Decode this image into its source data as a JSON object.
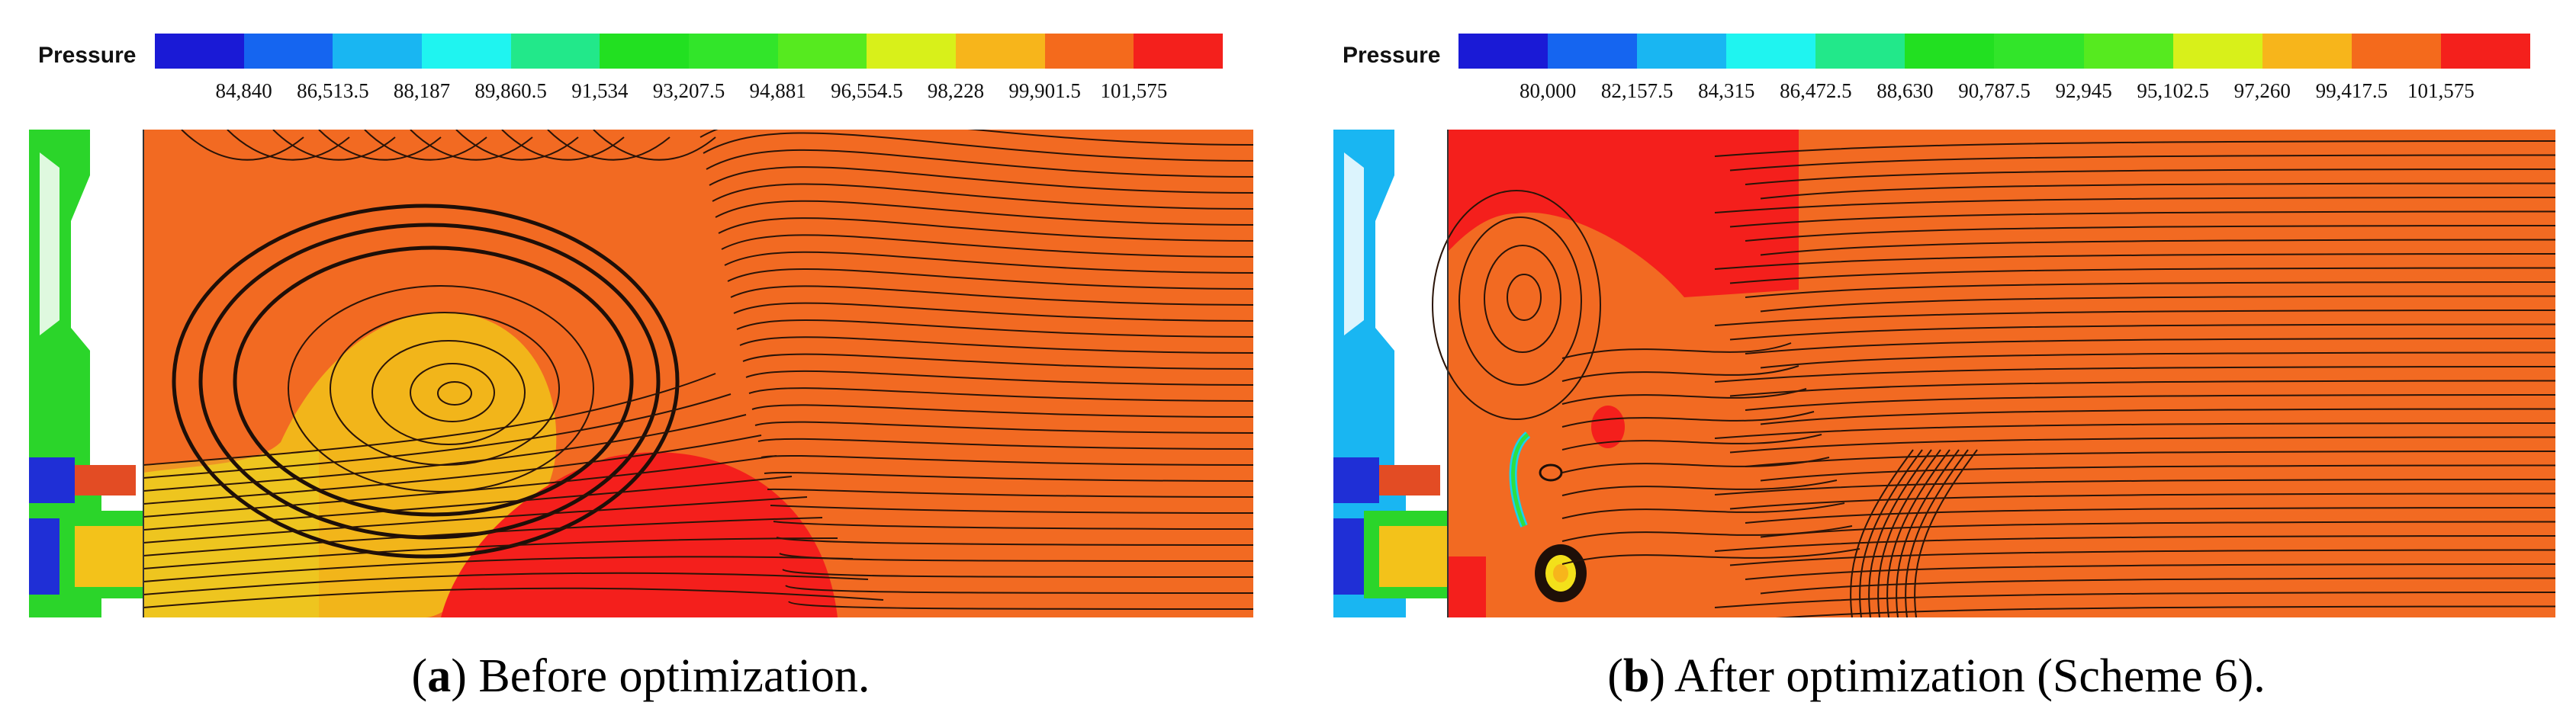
{
  "legend_label": "Pressure",
  "panels": [
    {
      "id": "a",
      "letter": "a",
      "caption": ") Before optimization.",
      "ticks": [
        "84,840",
        "86,513.5",
        "88,187",
        "89,860.5",
        "91,534",
        "93,207.5",
        "94,881",
        "96,554.5",
        "98,228",
        "99,901.5",
        "101,575"
      ]
    },
    {
      "id": "b",
      "letter": "b",
      "caption": ") After optimization (Scheme 6).",
      "ticks": [
        "80,000",
        "82,157.5",
        "84,315",
        "86,472.5",
        "88,630",
        "90,787.5",
        "92,945",
        "95,102.5",
        "97,260",
        "99,417.5",
        "101,575"
      ]
    }
  ],
  "colors": {
    "scale": [
      "#1a1ad6",
      "#1565f0",
      "#19b6f2",
      "#1ff4f0",
      "#22e88a",
      "#22e021",
      "#32e52a",
      "#56ea1f",
      "#d8f01a",
      "#f7b51b",
      "#f46a1c",
      "#f4201c"
    ],
    "main_field": "#f26a22",
    "high_pressure": "#f41f1c",
    "low_pressure_a": "#f2b51a",
    "streamline": "#2a1408"
  }
}
